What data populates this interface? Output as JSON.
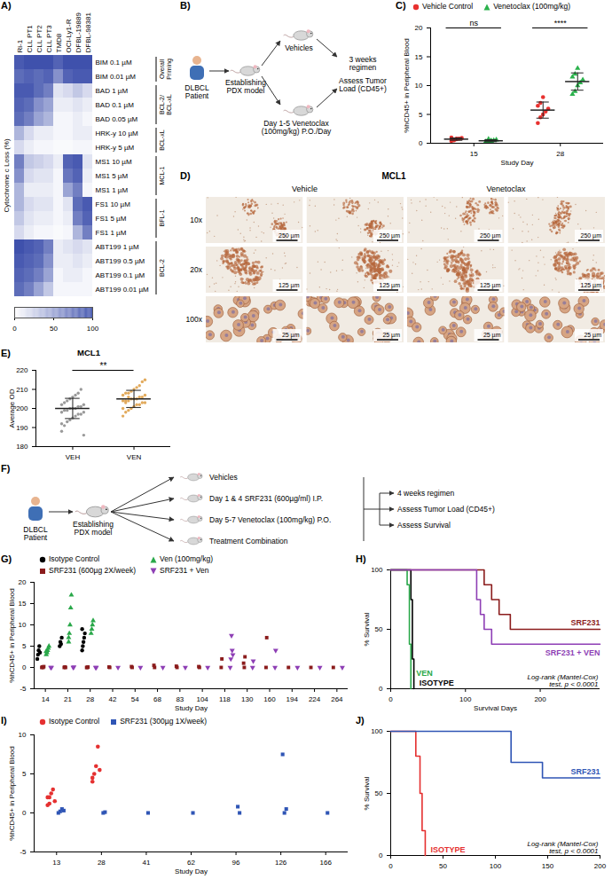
{
  "chart_data": [
    {
      "panel": "A)",
      "type": "heatmap",
      "columns": [
        "Ri-1",
        "CLL PT1",
        "CLL PT2",
        "CLL PT3",
        "TMD8",
        "OCI-Ly1-R",
        "DFBL-19889",
        "DFBL-98381"
      ],
      "rows": [
        "BIM 0.1 µM",
        "BIM 0.01 µM",
        "BAD 1 µM",
        "BAD 0.1 µM",
        "BAD 0.05 µM",
        "HRK-y 10 µM",
        "HRK-y 5 µM",
        "MS1 10 µM",
        "MS1 5 µM",
        "MS1 1 µM",
        "FS1 10 µM",
        "FS1 5 µM",
        "FS1 1 µM",
        "ABT199 1 µM",
        "ABT199 0.5 µM",
        "ABT199 0.1 µM",
        "ABT199 0.01 µM"
      ],
      "row_groups": [
        {
          "name": "Overall Priming",
          "rows": 2
        },
        {
          "name": "BCL-2/ BCL-xL",
          "rows": 3
        },
        {
          "name": "BCL-xL",
          "rows": 2
        },
        {
          "name": "MCL-1",
          "rows": 3
        },
        {
          "name": "BFL-1",
          "rows": 3
        },
        {
          "name": "BCL-2",
          "rows": 4
        }
      ],
      "values": [
        [
          90,
          95,
          95,
          95,
          85,
          95,
          95,
          95
        ],
        [
          80,
          85,
          80,
          85,
          60,
          85,
          90,
          90
        ],
        [
          90,
          90,
          80,
          70,
          15,
          20,
          30,
          20
        ],
        [
          85,
          80,
          60,
          50,
          10,
          10,
          15,
          10
        ],
        [
          80,
          70,
          50,
          40,
          5,
          5,
          10,
          5
        ],
        [
          40,
          20,
          10,
          10,
          5,
          5,
          10,
          10
        ],
        [
          20,
          10,
          5,
          5,
          3,
          3,
          5,
          5
        ],
        [
          70,
          30,
          25,
          20,
          10,
          85,
          90,
          15
        ],
        [
          60,
          20,
          15,
          15,
          5,
          75,
          85,
          10
        ],
        [
          40,
          10,
          10,
          10,
          5,
          50,
          70,
          5
        ],
        [
          40,
          20,
          15,
          15,
          5,
          15,
          80,
          90
        ],
        [
          30,
          15,
          10,
          10,
          5,
          10,
          70,
          85
        ],
        [
          20,
          10,
          5,
          5,
          3,
          5,
          40,
          70
        ],
        [
          95,
          90,
          85,
          70,
          10,
          15,
          20,
          15
        ],
        [
          90,
          85,
          80,
          60,
          10,
          10,
          15,
          10
        ],
        [
          85,
          80,
          70,
          50,
          5,
          10,
          10,
          5
        ],
        [
          80,
          70,
          50,
          30,
          5,
          5,
          5,
          5
        ]
      ],
      "color": "#3548a8",
      "colorbar": {
        "range": [
          0,
          100
        ],
        "ticks": [
          0,
          50,
          100
        ],
        "label": "Cytochrome c Loss (%)"
      }
    },
    {
      "panel": "C)",
      "type": "scatter",
      "xlabel": "Study Day",
      "ylabel": "%hCD45+ in Peripheral Blood",
      "categories": [
        15,
        28
      ],
      "ylim": [
        0,
        20
      ],
      "yticks": [
        0,
        5,
        10,
        15,
        20
      ],
      "legend": "top",
      "annotations": [
        "ns",
        "****"
      ],
      "series": [
        {
          "name": "Vehicle Control",
          "color": "#e8312f",
          "marker": "circle",
          "values": [
            [
              0.4,
              0.6,
              0.7,
              0.8,
              0.9,
              1.0,
              0.5,
              0.8
            ],
            [
              3.5,
              4.5,
              5.0,
              5.5,
              6.0,
              6.5,
              7.0,
              8.0
            ]
          ],
          "mean": [
            0.71,
            5.75
          ],
          "sd": [
            0.2,
            1.4
          ]
        },
        {
          "name": "Venetoclax (100mg/kg)",
          "color": "#2bb24c",
          "marker": "triangle",
          "values": [
            [
              0.2,
              0.3,
              0.4,
              0.5,
              0.6,
              0.3,
              0.7,
              0.4
            ],
            [
              8.5,
              9.0,
              10.0,
              10.5,
              11.0,
              11.5,
              12.0,
              13.0
            ]
          ],
          "mean": [
            0.43,
            10.7
          ],
          "sd": [
            0.17,
            1.5
          ]
        }
      ]
    },
    {
      "panel": "E)",
      "type": "scatter",
      "title": "MCL1",
      "ylabel": "Average OD",
      "categories": [
        "VEH",
        "VEN"
      ],
      "colors": [
        "#9a9a9a",
        "#e2aa5c"
      ],
      "ylim": [
        180,
        220
      ],
      "yticks": [
        180,
        190,
        200,
        210,
        220
      ],
      "annotation": "**",
      "values": [
        [
          188,
          191,
          193,
          194,
          195,
          196,
          197,
          197,
          198,
          198,
          199,
          199,
          200,
          200,
          200,
          201,
          201,
          202,
          202,
          203,
          204,
          205,
          206,
          207,
          208,
          210,
          186,
          192
        ],
        [
          196,
          198,
          199,
          200,
          201,
          202,
          202,
          203,
          203,
          204,
          204,
          204,
          205,
          205,
          205,
          206,
          206,
          207,
          207,
          208,
          208,
          209,
          210,
          211,
          212,
          214,
          215,
          200,
          203,
          206
        ]
      ],
      "mean": [
        200,
        205
      ],
      "sd": [
        5.3,
        4.5
      ]
    },
    {
      "panel": "G)",
      "type": "scatter",
      "xlabel": "Study Day",
      "ylabel": "%hCD45+ in Peripheral Blood",
      "categories": [
        14,
        21,
        28,
        42,
        54,
        68,
        83,
        104,
        118,
        130,
        160,
        194,
        224,
        264
      ],
      "ylim": [
        -5,
        20
      ],
      "yticks": [
        -5,
        0,
        5,
        10,
        15,
        20
      ],
      "legend": "top",
      "series": [
        {
          "name": "Isotype Control",
          "color": "#000000",
          "marker": "circle",
          "values": [
            [
              2,
              3,
              4,
              5,
              3.5
            ],
            [
              5,
              6,
              5.5,
              7
            ],
            [
              4,
              5,
              6,
              7,
              8,
              9
            ],
            null,
            null,
            null,
            null,
            null,
            null,
            null,
            null,
            null,
            null,
            null
          ]
        },
        {
          "name": "SRF231 (600µg 2X/week)",
          "color": "#8b1c1c",
          "marker": "square",
          "values": [
            [
              0,
              0.1,
              0,
              0.2
            ],
            [
              0,
              0.1,
              0
            ],
            [
              0,
              0,
              0.1
            ],
            [
              0.1,
              0
            ],
            [
              0.2,
              0
            ],
            [
              0.5,
              0
            ],
            [
              0.3,
              0
            ],
            [
              0.2,
              0
            ],
            [
              0,
              2
            ],
            [
              1,
              0,
              2.5
            ],
            [
              0,
              7
            ],
            [
              0
            ],
            [
              0
            ],
            [
              0
            ]
          ]
        },
        {
          "name": "Ven (100mg/kg)",
          "color": "#2aa84a",
          "marker": "triangle",
          "values": [
            [
              3,
              3.5,
              4,
              4.5,
              5,
              3.8
            ],
            [
              6,
              8,
              10,
              14,
              17,
              7
            ],
            [
              8,
              9,
              10,
              11
            ],
            null,
            null,
            null,
            null,
            null,
            null,
            null,
            null,
            null,
            null,
            null
          ]
        },
        {
          "name": "SRF231 + Ven",
          "color": "#8e3fb5",
          "marker": "triangle-down",
          "values": [
            [
              0,
              0
            ],
            [
              0,
              0.1
            ],
            [
              0,
              0
            ],
            [
              0
            ],
            [
              0
            ],
            [
              0
            ],
            [
              0
            ],
            [
              0
            ],
            [
              0,
              2,
              7.5,
              4,
              3
            ],
            [
              0,
              1.5
            ],
            [
              0,
              4
            ],
            [
              0
            ],
            [
              0
            ],
            [
              0
            ]
          ]
        }
      ]
    },
    {
      "panel": "H)",
      "type": "line",
      "xlabel": "Survival Days",
      "ylabel": "% Survival",
      "xlim": [
        0,
        280
      ],
      "xticks": [
        0,
        100,
        200
      ],
      "ylim": [
        0,
        100
      ],
      "yticks": [
        0,
        50,
        100
      ],
      "line_style": "step",
      "annotation": "Log-rank (Mantel-Cox) test, p < 0.0001",
      "series": [
        {
          "name": "ISOTYPE",
          "color": "#000000",
          "x": [
            0,
            27,
            29,
            31
          ],
          "values": [
            100,
            75,
            25,
            0
          ]
        },
        {
          "name": "VEN",
          "color": "#2aa84a",
          "x": [
            0,
            22,
            25,
            27
          ],
          "values": [
            100,
            87.5,
            37.5,
            0
          ]
        },
        {
          "name": "SRF231",
          "color": "#8b1c1c",
          "x": [
            0,
            125,
            135,
            145,
            160,
            280
          ],
          "values": [
            100,
            87.5,
            75,
            62.5,
            50,
            50
          ]
        },
        {
          "name": "SRF231 + VEN",
          "color": "#8e3fb5",
          "x": [
            0,
            115,
            120,
            125,
            135,
            280
          ],
          "values": [
            100,
            75,
            62.5,
            50,
            37.5,
            37.5
          ]
        }
      ]
    },
    {
      "panel": "I)",
      "type": "scatter",
      "xlabel": "Study Day",
      "ylabel": "%hCD45+ in Peripheral Blood",
      "categories": [
        13,
        28,
        41,
        62,
        96,
        126,
        166
      ],
      "ylim": [
        -5,
        10
      ],
      "yticks": [
        -5,
        0,
        5,
        10
      ],
      "legend": "top",
      "series": [
        {
          "name": "Isotype Control",
          "color": "#e53030",
          "marker": "circle",
          "values": [
            [
              1,
              2,
              2.5,
              3,
              1.5,
              2,
              1.2
            ],
            [
              4,
              5,
              6,
              8.5,
              5.5,
              4.5
            ],
            null,
            null,
            null,
            null,
            null
          ]
        },
        {
          "name": "SRF231 (300µg 1X/week)",
          "color": "#2f55b5",
          "marker": "square",
          "values": [
            [
              0,
              0.2,
              0.5,
              0.3
            ],
            [
              0,
              0.1
            ],
            [
              0
            ],
            [
              0
            ],
            [
              0.8,
              0
            ],
            [
              7.5,
              0,
              0.5
            ],
            [
              0
            ]
          ]
        }
      ]
    },
    {
      "panel": "J)",
      "type": "line",
      "ylabel": "% Survival",
      "xlim": [
        0,
        200
      ],
      "xticks": [
        0,
        50,
        100,
        150,
        200
      ],
      "ylim": [
        0,
        100
      ],
      "yticks": [
        0,
        50,
        100
      ],
      "line_style": "step",
      "annotation": "Log-rank (Mantel-Cox) test, p < 0.0001",
      "series": [
        {
          "name": "ISOTYPE",
          "color": "#e53030",
          "x": [
            0,
            24,
            28,
            30,
            33
          ],
          "values": [
            100,
            80,
            50,
            20,
            0
          ]
        },
        {
          "name": "SRF231",
          "color": "#2f55b5",
          "x": [
            0,
            115,
            145,
            200
          ],
          "values": [
            100,
            75,
            62.5,
            62.5
          ]
        }
      ]
    }
  ],
  "diagrams": [
    {
      "panel": "B)",
      "type": "diagram",
      "patient": "DLBCL Patient",
      "model": "Establishing PDX model",
      "arms": [
        "Vehicles",
        "Day 1-5 Venetoclax (100mg/kg) P.O./Day"
      ],
      "outcomes": [
        "3 weeks regimen",
        "Assess Tumor Load (CD45+)"
      ]
    },
    {
      "panel": "F)",
      "type": "diagram",
      "patient": "DLBCL Patient",
      "model": "Establishing PDX model",
      "arms": [
        "Vehicles",
        "Day 1 & 4 SRF231 (600µg/ml) I.P.",
        "Day 5-7 Venetoclax (100mg/kg) P.O.",
        "Treatment Combination"
      ],
      "outcomes": [
        "4 weeks regimen",
        "Assess Tumor Load (CD45+)",
        "Assess Survival"
      ]
    }
  ],
  "images": {
    "panel": "D)",
    "title": "MCL1",
    "columns": [
      "Vehicle",
      "Venetoclax"
    ],
    "rows": [
      {
        "label": "10x",
        "scale_bars": [
          "250 µm",
          "250 µm",
          "250 µm",
          "250 µm"
        ]
      },
      {
        "label": "20x",
        "scale_bars": [
          "125 µm",
          "125 µm",
          "125 µm",
          "125 µm"
        ]
      },
      {
        "label": "100x",
        "scale_bars": [
          "25 µm",
          "25 µm",
          "25 µm",
          "25 µm"
        ]
      }
    ]
  }
}
